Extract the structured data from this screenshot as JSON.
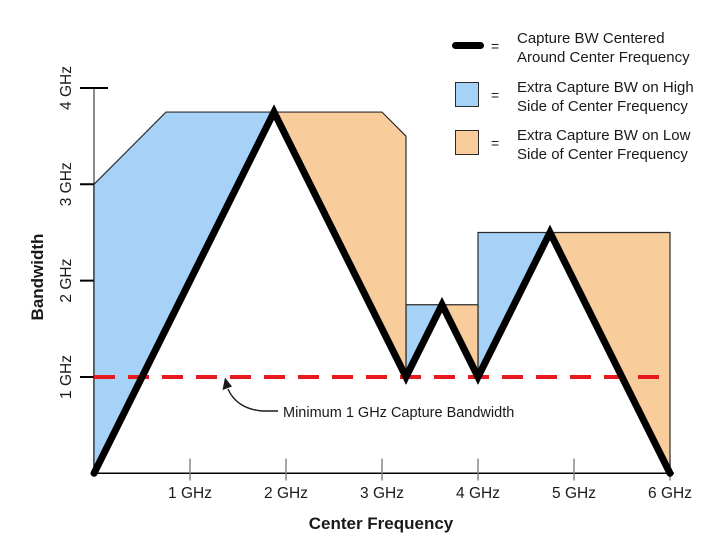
{
  "colors": {
    "blue": "#a7d2f7",
    "orange": "#f8cd9b",
    "red": "#e8191e",
    "line": "#000000",
    "axis_gray": "#7f7f7f",
    "region_border": "#2b2b2b",
    "text": "#1a1a1a"
  },
  "legend": {
    "items": [
      {
        "swatch": "thick-black-line",
        "equals": "=",
        "lines": [
          "Capture BW Centered",
          "Around Center Frequency"
        ]
      },
      {
        "swatch": "blue-box",
        "equals": "=",
        "lines": [
          "Extra Capture BW on High",
          "Side of Center Frequency"
        ]
      },
      {
        "swatch": "orange-box",
        "equals": "=",
        "lines": [
          "Extra Capture BW on Low",
          "Side of Center Frequency"
        ]
      }
    ]
  },
  "chart_data": {
    "type": "line",
    "title": "",
    "xlabel": "Center Frequency",
    "ylabel": "Bandwidth",
    "xlim": [
      0,
      6.2
    ],
    "ylim": [
      0,
      4.35
    ],
    "grid": false,
    "legend_position": "top-right",
    "x_ticks": [
      {
        "v": 1,
        "label": "1 GHz"
      },
      {
        "v": 2,
        "label": "2 GHz"
      },
      {
        "v": 3,
        "label": "3 GHz"
      },
      {
        "v": 4,
        "label": "4 GHz"
      },
      {
        "v": 5,
        "label": "5 GHz"
      },
      {
        "v": 6,
        "label": "6 GHz"
      }
    ],
    "y_ticks": [
      {
        "v": 1,
        "label": "1 GHz"
      },
      {
        "v": 2,
        "label": "2 GHz"
      },
      {
        "v": 3,
        "label": "3 GHz"
      },
      {
        "v": 4,
        "label": "4 GHz"
      }
    ],
    "series": [
      {
        "name": "Capture BW Centered Around Center Frequency",
        "color": "#000000",
        "points": [
          [
            0,
            0
          ],
          [
            1.875,
            3.75
          ],
          [
            3.25,
            1
          ],
          [
            3.625,
            1.75
          ],
          [
            4,
            1
          ],
          [
            4.75,
            2.5
          ],
          [
            6,
            0
          ]
        ]
      }
    ],
    "regions": [
      {
        "name": "extra-bw-high-side-1",
        "legend": "Extra Capture BW on High Side of Center Frequency",
        "color_key": "blue",
        "polygon": [
          [
            0,
            0
          ],
          [
            0,
            3
          ],
          [
            0.75,
            3.75
          ],
          [
            1.875,
            3.75
          ]
        ]
      },
      {
        "name": "extra-bw-high-side-2",
        "legend": "Extra Capture BW on High Side of Center Frequency",
        "color_key": "blue",
        "polygon": [
          [
            3.25,
            1
          ],
          [
            3.25,
            1.75
          ],
          [
            3.625,
            1.75
          ]
        ]
      },
      {
        "name": "extra-bw-high-side-3",
        "legend": "Extra Capture BW on High Side of Center Frequency",
        "color_key": "blue",
        "polygon": [
          [
            4,
            1
          ],
          [
            4,
            2.5
          ],
          [
            4.75,
            2.5
          ]
        ]
      },
      {
        "name": "extra-bw-low-side-1",
        "legend": "Extra Capture BW on Low Side of Center Frequency",
        "color_key": "orange",
        "polygon": [
          [
            1.875,
            3.75
          ],
          [
            3,
            3.75
          ],
          [
            3.25,
            3.5
          ],
          [
            3.25,
            1
          ]
        ]
      },
      {
        "name": "extra-bw-low-side-2",
        "legend": "Extra Capture BW on Low Side of Center Frequency",
        "color_key": "orange",
        "polygon": [
          [
            3.625,
            1.75
          ],
          [
            4,
            1.75
          ],
          [
            4,
            1
          ]
        ]
      },
      {
        "name": "extra-bw-low-side-3",
        "legend": "Extra Capture BW on Low Side of Center Frequency",
        "color_key": "orange",
        "polygon": [
          [
            4.75,
            2.5
          ],
          [
            6,
            2.5
          ],
          [
            6,
            0
          ]
        ]
      }
    ],
    "reference_line": {
      "y": 1,
      "x_start": 0,
      "x_end": 6,
      "style": "dashed",
      "color": "#e8191e",
      "label": "Minimum 1 GHz Capture Bandwidth"
    }
  }
}
